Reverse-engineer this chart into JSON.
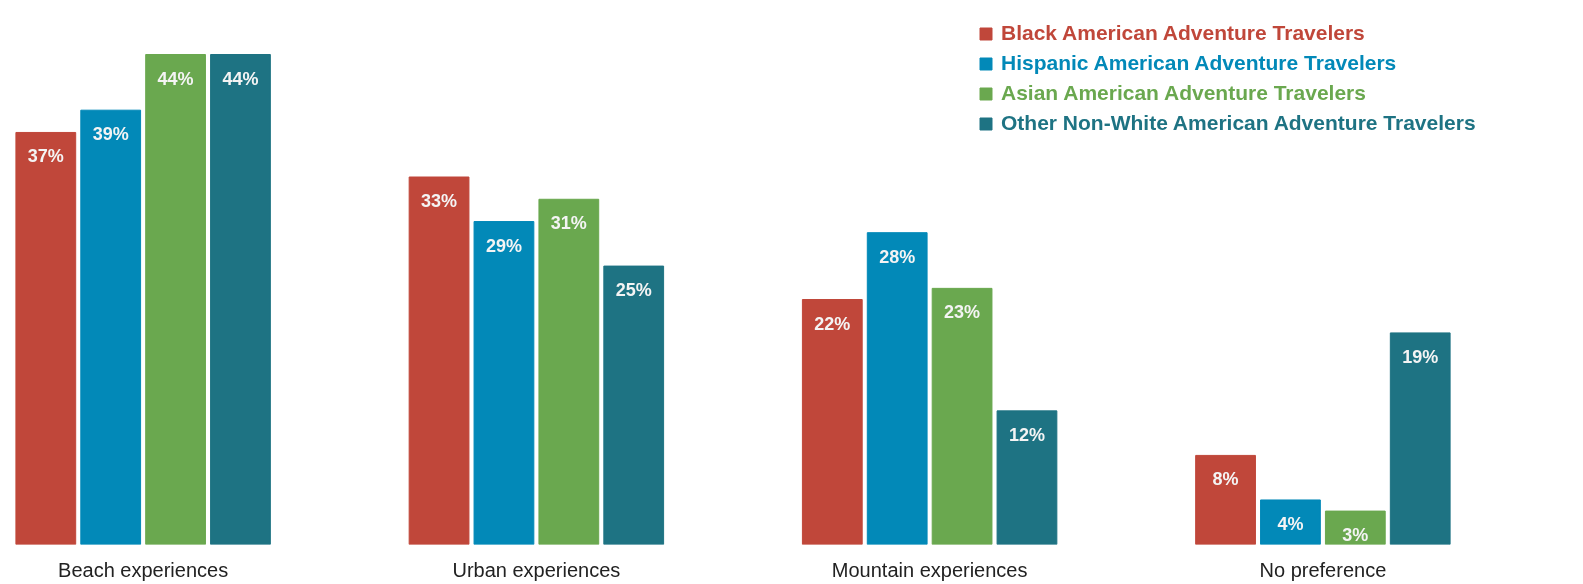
{
  "chart_data": {
    "type": "bar",
    "categories": [
      "Beach experiences",
      "Urban experiences",
      "Mountain experiences",
      "No preference"
    ],
    "series": [
      {
        "name": "Black American Adventure Travelers",
        "color": "#c0473a",
        "values": [
          37,
          33,
          22,
          8
        ],
        "value_labels": [
          "37%",
          "33%",
          "22%",
          "8%"
        ]
      },
      {
        "name": "Hispanic American Adventure Travelers",
        "color": "#0289b8",
        "values": [
          39,
          29,
          28,
          4
        ],
        "value_labels": [
          "39%",
          "29%",
          "28%",
          "4%"
        ]
      },
      {
        "name": "Asian American Adventure Travelers",
        "color": "#6aa84f",
        "values": [
          44,
          31,
          23,
          3
        ],
        "value_labels": [
          "44%",
          "31%",
          "23%",
          "3%"
        ]
      },
      {
        "name": "Other Non-White American Adventure Travelers",
        "color": "#1e7383",
        "values": [
          44,
          25,
          12,
          19
        ],
        "value_labels": [
          "44%",
          "25%",
          "12%",
          "19%"
        ]
      }
    ],
    "legend": "top right",
    "grid": false
  }
}
